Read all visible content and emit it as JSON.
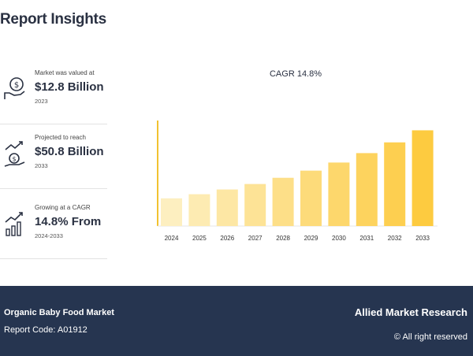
{
  "header": {
    "title": "Report Insights"
  },
  "stats": [
    {
      "label": "Market was valued at",
      "value": "$12.8 Billion",
      "sub": "2023",
      "icon": "money-hand-icon"
    },
    {
      "label": "Projected to reach",
      "value": "$50.8 Billion",
      "sub": "2033",
      "icon": "growth-coins-icon"
    },
    {
      "label": "Growing at a CAGR",
      "value": "14.8% From",
      "sub": "2024-2033",
      "icon": "bar-trend-icon"
    }
  ],
  "chart_data": {
    "type": "bar",
    "title": "CAGR 14.8%",
    "categories": [
      "2024",
      "2025",
      "2026",
      "2027",
      "2028",
      "2029",
      "2030",
      "2031",
      "2032",
      "2033"
    ],
    "values": [
      14.7,
      16.9,
      19.4,
      22.3,
      25.6,
      29.4,
      33.7,
      38.7,
      44.4,
      50.8
    ],
    "ylim": [
      0,
      56
    ],
    "colors": [
      "#fdefc0",
      "#fdebb2",
      "#fde7a4",
      "#fde396",
      "#fddf88",
      "#fddb7a",
      "#fdd76c",
      "#fdd35e",
      "#fdcf50",
      "#fdcb40"
    ],
    "axis_color": "#f2c230"
  },
  "footer": {
    "market": "Organic Baby Food Market",
    "report_code": "Report Code: A01912",
    "brand": "Allied Market Research",
    "rights": "© All right reserved"
  }
}
